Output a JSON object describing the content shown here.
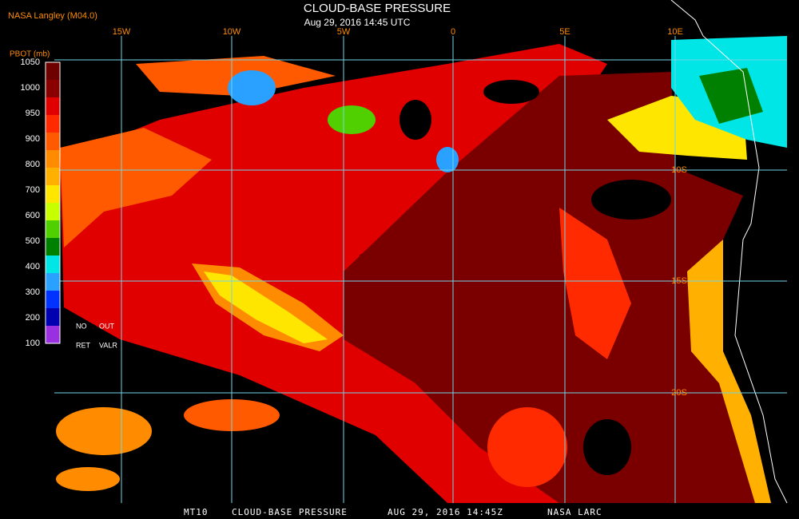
{
  "header": {
    "source": "NASA Langley (M04.0)",
    "title": "CLOUD-BASE PRESSURE",
    "subtitle": "Aug 29, 2016 14:45 UTC"
  },
  "colorbar": {
    "label": "PBOT (mb)",
    "ticks": [
      1050,
      1000,
      950,
      900,
      800,
      700,
      600,
      500,
      400,
      300,
      200,
      100
    ],
    "colors": [
      "#6e0000",
      "#8a0000",
      "#e00000",
      "#ff2a00",
      "#ff5a00",
      "#ff8c00",
      "#ffb000",
      "#ffe600",
      "#c8ff00",
      "#50d000",
      "#008000",
      "#00e6e6",
      "#2aa0ff",
      "#0033ff",
      "#0000b0",
      "#9a30e0"
    ],
    "notes": [
      "NO",
      "OUT",
      "RET",
      "VALR"
    ]
  },
  "longitude_labels": [
    "15W",
    "10W",
    "5W",
    "0",
    "5E",
    "10E"
  ],
  "latitude_labels": [
    "10S",
    "15S",
    "20S"
  ],
  "footer": [
    "MT10",
    "CLOUD-BASE PRESSURE",
    "AUG 29, 2016 14:45Z",
    "NASA LARC"
  ]
}
